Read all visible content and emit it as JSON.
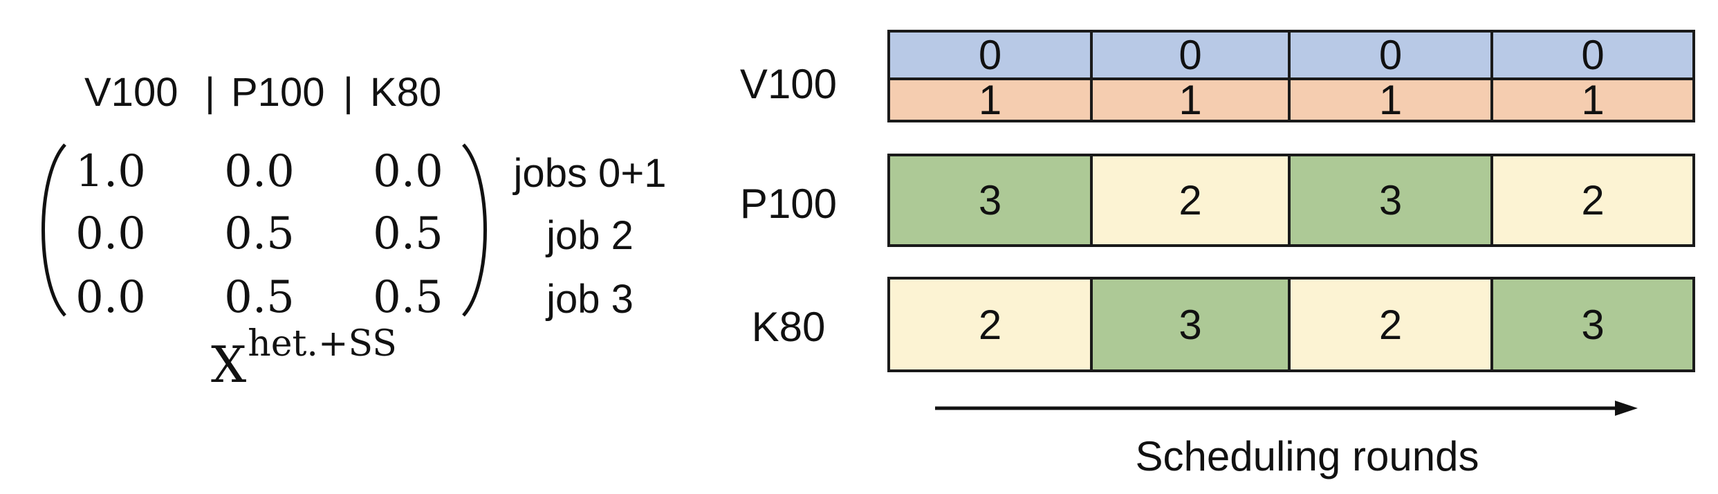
{
  "matrix": {
    "header": [
      "V100",
      "|",
      "P100",
      "|",
      "K80"
    ],
    "rows": [
      {
        "values": [
          "1.0",
          "0.0",
          "0.0"
        ],
        "label": "jobs 0+1"
      },
      {
        "values": [
          "0.0",
          "0.5",
          "0.5"
        ],
        "label": "job 2"
      },
      {
        "values": [
          "0.0",
          "0.5",
          "0.5"
        ],
        "label": "job 3"
      }
    ],
    "name_base": "X",
    "name_sup": "het.+SS"
  },
  "schedule": {
    "resources": [
      "V100",
      "P100",
      "K80"
    ],
    "v100_top": [
      "0",
      "0",
      "0",
      "0"
    ],
    "v100_bottom": [
      "1",
      "1",
      "1",
      "1"
    ],
    "p100": [
      "3",
      "2",
      "3",
      "2"
    ],
    "k80": [
      "2",
      "3",
      "2",
      "3"
    ],
    "x_label": "Scheduling rounds"
  },
  "colors": {
    "job0": "#b8c9e6",
    "job1": "#f5cdb0",
    "job2": "#fcf3d3",
    "job3": "#adc996"
  }
}
